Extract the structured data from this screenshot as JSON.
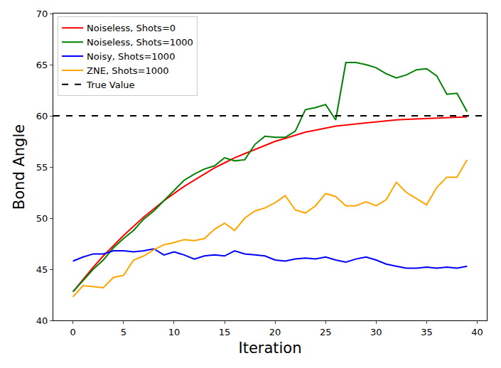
{
  "chart_data": {
    "type": "line",
    "x_label": "Iteration",
    "y_label": "Bond Angle",
    "x": [
      0,
      1,
      2,
      3,
      4,
      5,
      6,
      7,
      8,
      9,
      10,
      11,
      12,
      13,
      14,
      15,
      16,
      17,
      18,
      19,
      20,
      21,
      22,
      23,
      24,
      25,
      26,
      27,
      28,
      29,
      30,
      31,
      32,
      33,
      34,
      35,
      36,
      37,
      38,
      39
    ],
    "series": [
      {
        "name": "Noiseless, Shots=0",
        "color": "#ff0000",
        "line_style": "solid",
        "values": [
          42.8,
          44.0,
          45.2,
          46.3,
          47.3,
          48.3,
          49.2,
          50.1,
          50.9,
          51.7,
          52.4,
          53.1,
          53.7,
          54.3,
          54.9,
          55.4,
          55.9,
          56.3,
          56.7,
          57.1,
          57.5,
          57.8,
          58.1,
          58.4,
          58.6,
          58.8,
          59.0,
          59.1,
          59.2,
          59.35,
          59.45,
          59.5,
          59.6,
          59.65,
          59.7,
          59.75,
          59.8,
          59.85,
          59.85,
          59.9
        ]
      },
      {
        "name": "Noiseless, Shots=1000",
        "color": "#008000",
        "line_style": "solid",
        "values": [
          42.8,
          43.9,
          45.0,
          45.9,
          47.1,
          48.0,
          48.8,
          49.9,
          50.7,
          51.7,
          52.7,
          53.7,
          54.3,
          54.8,
          55.1,
          55.9,
          55.6,
          55.7,
          57.2,
          58.0,
          57.9,
          57.9,
          58.5,
          60.6,
          60.8,
          61.1,
          59.6,
          65.2,
          65.2,
          65.0,
          64.7,
          64.1,
          63.7,
          64.0,
          64.5,
          64.6,
          63.9,
          62.1,
          62.2,
          60.4
        ]
      },
      {
        "name": "Noisy, Shots=1000",
        "color": "#0000ff",
        "line_style": "solid",
        "values": [
          45.8,
          46.2,
          46.5,
          46.5,
          46.8,
          46.8,
          46.7,
          46.8,
          47.0,
          46.4,
          46.7,
          46.4,
          46.0,
          46.3,
          46.4,
          46.3,
          46.8,
          46.5,
          46.4,
          46.3,
          45.9,
          45.8,
          46.0,
          46.1,
          46.0,
          46.2,
          45.9,
          45.7,
          46.0,
          46.2,
          45.9,
          45.5,
          45.3,
          45.1,
          45.1,
          45.2,
          45.1,
          45.2,
          45.1,
          45.3
        ]
      },
      {
        "name": "ZNE, Shots=1000",
        "color": "#ffa500",
        "line_style": "solid",
        "values": [
          42.3,
          43.4,
          43.3,
          43.2,
          44.2,
          44.4,
          45.9,
          46.3,
          46.9,
          47.4,
          47.6,
          47.9,
          47.8,
          48.0,
          48.9,
          49.5,
          48.8,
          50.0,
          50.7,
          51.0,
          51.5,
          52.2,
          50.8,
          50.5,
          51.2,
          52.4,
          52.1,
          51.2,
          51.2,
          51.6,
          51.2,
          51.8,
          53.5,
          52.5,
          51.9,
          51.3,
          53.0,
          54.0,
          54.0,
          55.7
        ]
      },
      {
        "name": "True Value",
        "color": "#000000",
        "line_style": "dashed",
        "x": [
          -1.95,
          40.95
        ],
        "values": [
          60,
          60
        ]
      }
    ],
    "xlim": [
      -1.95,
      40.95
    ],
    "xticks": [
      0,
      5,
      10,
      15,
      20,
      25,
      30,
      35,
      40
    ],
    "ylim": [
      40,
      70
    ],
    "yticks": [
      40,
      45,
      50,
      55,
      60,
      65,
      70
    ],
    "grid": false,
    "legend": "upper left"
  }
}
